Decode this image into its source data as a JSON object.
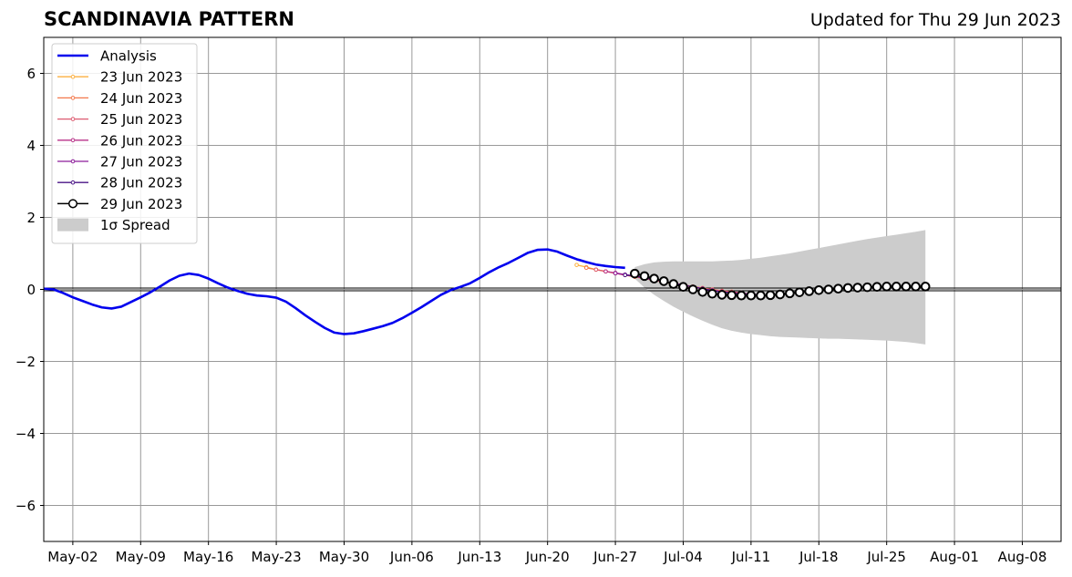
{
  "header": {
    "title": "SCANDINAVIA PATTERN",
    "updated": "Updated for Thu 29 Jun 2023"
  },
  "chart_data": {
    "type": "line",
    "title": "SCANDINAVIA PATTERN",
    "subtitle": "Updated for Thu 29 Jun 2023",
    "xlabel": "",
    "ylabel": "",
    "xlim": [
      "2023-04-29",
      "2023-08-12"
    ],
    "ylim": [
      -7,
      7
    ],
    "yticks": [
      -6,
      -4,
      -2,
      0,
      2,
      4,
      6
    ],
    "ytick_labels": [
      "−6",
      "−4",
      "−2",
      "0",
      "2",
      "4",
      "6"
    ],
    "xticks": [
      "2023-05-02",
      "2023-05-09",
      "2023-05-16",
      "2023-05-23",
      "2023-05-30",
      "2023-06-06",
      "2023-06-13",
      "2023-06-20",
      "2023-06-27",
      "2023-07-04",
      "2023-07-11",
      "2023-07-18",
      "2023-07-25",
      "2023-08-01",
      "2023-08-08"
    ],
    "xtick_labels": [
      "May-02",
      "May-09",
      "May-16",
      "May-23",
      "May-30",
      "Jun-06",
      "Jun-13",
      "Jun-20",
      "Jun-27",
      "Jul-04",
      "Jul-11",
      "Jul-18",
      "Jul-25",
      "Aug-01",
      "Aug-08"
    ],
    "grid": true,
    "legend_position": "top-left",
    "colors": {
      "analysis": "#0000ee",
      "spread": "#cccccc",
      "zero_line": "#000000",
      "grid": "#999999"
    },
    "analysis": {
      "name": "Analysis",
      "x": [
        "2023-04-29",
        "2023-04-30",
        "2023-05-01",
        "2023-05-02",
        "2023-05-03",
        "2023-05-04",
        "2023-05-05",
        "2023-05-06",
        "2023-05-07",
        "2023-05-08",
        "2023-05-09",
        "2023-05-10",
        "2023-05-11",
        "2023-05-12",
        "2023-05-13",
        "2023-05-14",
        "2023-05-15",
        "2023-05-16",
        "2023-05-17",
        "2023-05-18",
        "2023-05-19",
        "2023-05-20",
        "2023-05-21",
        "2023-05-22",
        "2023-05-23",
        "2023-05-24",
        "2023-05-25",
        "2023-05-26",
        "2023-05-27",
        "2023-05-28",
        "2023-05-29",
        "2023-05-30",
        "2023-05-31",
        "2023-06-01",
        "2023-06-02",
        "2023-06-03",
        "2023-06-04",
        "2023-06-05",
        "2023-06-06",
        "2023-06-07",
        "2023-06-08",
        "2023-06-09",
        "2023-06-10",
        "2023-06-11",
        "2023-06-12",
        "2023-06-13",
        "2023-06-14",
        "2023-06-15",
        "2023-06-16",
        "2023-06-17",
        "2023-06-18",
        "2023-06-19",
        "2023-06-20",
        "2023-06-21",
        "2023-06-22",
        "2023-06-23",
        "2023-06-24",
        "2023-06-25",
        "2023-06-26",
        "2023-06-27",
        "2023-06-28"
      ],
      "values": [
        0.02,
        0.0,
        -0.1,
        -0.22,
        -0.32,
        -0.42,
        -0.5,
        -0.53,
        -0.48,
        -0.35,
        -0.22,
        -0.08,
        0.08,
        0.25,
        0.38,
        0.44,
        0.4,
        0.3,
        0.17,
        0.05,
        -0.04,
        -0.12,
        -0.17,
        -0.19,
        -0.23,
        -0.34,
        -0.52,
        -0.72,
        -0.9,
        -1.07,
        -1.2,
        -1.24,
        -1.22,
        -1.16,
        -1.09,
        -1.02,
        -0.93,
        -0.8,
        -0.65,
        -0.49,
        -0.32,
        -0.15,
        -0.02,
        0.07,
        0.17,
        0.32,
        0.48,
        0.62,
        0.74,
        0.88,
        1.02,
        1.1,
        1.11,
        1.05,
        0.94,
        0.84,
        0.76,
        0.69,
        0.65,
        0.62,
        0.6
      ]
    },
    "forecasts": [
      {
        "name": "23 Jun 2023",
        "color": "#fcb040",
        "x": [
          "2023-06-23",
          "2023-06-24",
          "2023-06-25",
          "2023-06-26",
          "2023-06-27",
          "2023-06-28",
          "2023-06-29",
          "2023-06-30",
          "2023-07-01",
          "2023-07-02",
          "2023-07-03",
          "2023-07-04",
          "2023-07-05",
          "2023-07-06",
          "2023-07-07",
          "2023-07-08"
        ],
        "values": [
          0.68,
          0.62,
          0.55,
          0.5,
          0.45,
          0.4,
          0.35,
          0.3,
          0.25,
          0.2,
          0.15,
          0.1,
          0.06,
          0.02,
          -0.02,
          -0.05
        ]
      },
      {
        "name": "24 Jun 2023",
        "color": "#f3784b",
        "x": [
          "2023-06-24",
          "2023-06-25",
          "2023-06-26",
          "2023-06-27",
          "2023-06-28",
          "2023-06-29",
          "2023-06-30",
          "2023-07-01",
          "2023-07-02",
          "2023-07-03",
          "2023-07-04",
          "2023-07-05",
          "2023-07-06",
          "2023-07-07",
          "2023-07-08",
          "2023-07-09"
        ],
        "values": [
          0.6,
          0.55,
          0.5,
          0.45,
          0.4,
          0.35,
          0.3,
          0.26,
          0.22,
          0.18,
          0.13,
          0.08,
          0.04,
          0.0,
          -0.04,
          -0.06
        ]
      },
      {
        "name": "25 Jun 2023",
        "color": "#dd5a70",
        "x": [
          "2023-06-25",
          "2023-06-26",
          "2023-06-27",
          "2023-06-28",
          "2023-06-29",
          "2023-06-30",
          "2023-07-01",
          "2023-07-02",
          "2023-07-03",
          "2023-07-04",
          "2023-07-05",
          "2023-07-06",
          "2023-07-07",
          "2023-07-08",
          "2023-07-09",
          "2023-07-10"
        ],
        "values": [
          0.55,
          0.5,
          0.45,
          0.4,
          0.36,
          0.3,
          0.26,
          0.21,
          0.17,
          0.12,
          0.07,
          0.03,
          -0.01,
          -0.05,
          -0.07,
          -0.09
        ]
      },
      {
        "name": "26 Jun 2023",
        "color": "#b83289",
        "x": [
          "2023-06-26",
          "2023-06-27",
          "2023-06-28",
          "2023-06-29",
          "2023-06-30",
          "2023-07-01",
          "2023-07-02",
          "2023-07-03",
          "2023-07-04",
          "2023-07-05",
          "2023-07-06",
          "2023-07-07",
          "2023-07-08",
          "2023-07-09",
          "2023-07-10",
          "2023-07-11"
        ],
        "values": [
          0.5,
          0.46,
          0.41,
          0.37,
          0.32,
          0.27,
          0.22,
          0.17,
          0.12,
          0.07,
          0.02,
          -0.03,
          -0.06,
          -0.09,
          -0.11,
          -0.12
        ]
      },
      {
        "name": "27 Jun 2023",
        "color": "#8c1c9a",
        "x": [
          "2023-06-27",
          "2023-06-28",
          "2023-06-29",
          "2023-06-30",
          "2023-07-01",
          "2023-07-02",
          "2023-07-03",
          "2023-07-04",
          "2023-07-05",
          "2023-07-06",
          "2023-07-07",
          "2023-07-08",
          "2023-07-09",
          "2023-07-10",
          "2023-07-11",
          "2023-07-12"
        ],
        "values": [
          0.45,
          0.41,
          0.37,
          0.32,
          0.27,
          0.22,
          0.17,
          0.12,
          0.07,
          0.02,
          -0.03,
          -0.07,
          -0.1,
          -0.12,
          -0.14,
          -0.15
        ]
      },
      {
        "name": "28 Jun 2023",
        "color": "#4a1486",
        "x": [
          "2023-06-28",
          "2023-06-29",
          "2023-06-30",
          "2023-07-01",
          "2023-07-02",
          "2023-07-03",
          "2023-07-04",
          "2023-07-05",
          "2023-07-06",
          "2023-07-07",
          "2023-07-08",
          "2023-07-09",
          "2023-07-10",
          "2023-07-11",
          "2023-07-12",
          "2023-07-13"
        ],
        "values": [
          0.4,
          0.37,
          0.32,
          0.27,
          0.22,
          0.17,
          0.12,
          0.07,
          0.02,
          -0.03,
          -0.07,
          -0.1,
          -0.13,
          -0.15,
          -0.16,
          -0.16
        ]
      }
    ],
    "current_forecast": {
      "name": "29 Jun 2023",
      "color": "#000000",
      "x": [
        "2023-06-29",
        "2023-06-30",
        "2023-07-01",
        "2023-07-02",
        "2023-07-03",
        "2023-07-04",
        "2023-07-05",
        "2023-07-06",
        "2023-07-07",
        "2023-07-08",
        "2023-07-09",
        "2023-07-10",
        "2023-07-11",
        "2023-07-12",
        "2023-07-13",
        "2023-07-14",
        "2023-07-15",
        "2023-07-16",
        "2023-07-17",
        "2023-07-18",
        "2023-07-19",
        "2023-07-20",
        "2023-07-21",
        "2023-07-22",
        "2023-07-23",
        "2023-07-24",
        "2023-07-25",
        "2023-07-26",
        "2023-07-27",
        "2023-07-28",
        "2023-07-29"
      ],
      "values": [
        0.44,
        0.37,
        0.3,
        0.23,
        0.15,
        0.07,
        0.0,
        -0.07,
        -0.12,
        -0.15,
        -0.16,
        -0.17,
        -0.17,
        -0.17,
        -0.16,
        -0.14,
        -0.11,
        -0.08,
        -0.05,
        -0.02,
        0.0,
        0.02,
        0.04,
        0.05,
        0.06,
        0.07,
        0.08,
        0.08,
        0.08,
        0.08,
        0.08
      ]
    },
    "spread": {
      "name": "1σ Spread",
      "x": [
        "2023-06-29",
        "2023-06-30",
        "2023-07-01",
        "2023-07-02",
        "2023-07-03",
        "2023-07-04",
        "2023-07-05",
        "2023-07-06",
        "2023-07-07",
        "2023-07-08",
        "2023-07-09",
        "2023-07-10",
        "2023-07-11",
        "2023-07-12",
        "2023-07-13",
        "2023-07-14",
        "2023-07-15",
        "2023-07-16",
        "2023-07-17",
        "2023-07-18",
        "2023-07-19",
        "2023-07-20",
        "2023-07-21",
        "2023-07-22",
        "2023-07-23",
        "2023-07-24",
        "2023-07-25",
        "2023-07-26",
        "2023-07-27",
        "2023-07-28",
        "2023-07-29"
      ],
      "upper": [
        0.62,
        0.7,
        0.75,
        0.77,
        0.78,
        0.78,
        0.78,
        0.78,
        0.78,
        0.79,
        0.8,
        0.82,
        0.85,
        0.88,
        0.92,
        0.96,
        1.0,
        1.05,
        1.1,
        1.15,
        1.2,
        1.25,
        1.3,
        1.35,
        1.4,
        1.44,
        1.48,
        1.52,
        1.56,
        1.6,
        1.65
      ],
      "lower": [
        0.3,
        0.05,
        -0.15,
        -0.32,
        -0.48,
        -0.62,
        -0.75,
        -0.87,
        -0.98,
        -1.08,
        -1.15,
        -1.2,
        -1.24,
        -1.27,
        -1.3,
        -1.32,
        -1.33,
        -1.34,
        -1.35,
        -1.36,
        -1.37,
        -1.37,
        -1.38,
        -1.39,
        -1.4,
        -1.41,
        -1.42,
        -1.44,
        -1.46,
        -1.49,
        -1.53
      ]
    }
  }
}
